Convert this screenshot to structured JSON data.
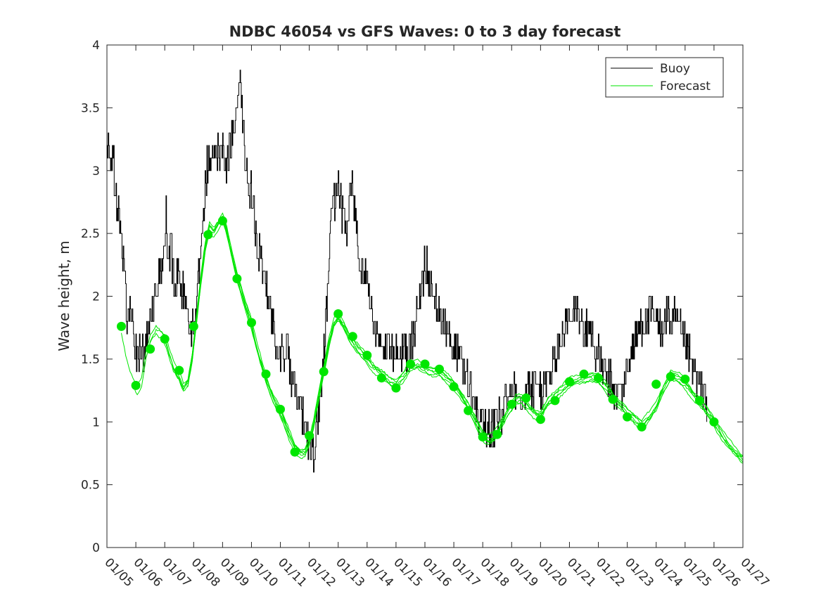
{
  "chart_data": {
    "type": "line",
    "title": "NDBC 46054 vs GFS Waves: 0 to 3 day forecast",
    "xlabel": "",
    "ylabel": "Wave height, m",
    "x_unit": "day index from 01/05",
    "xlim": [
      0,
      22
    ],
    "ylim": [
      0,
      4
    ],
    "x_ticks": [
      0,
      1,
      2,
      3,
      4,
      5,
      6,
      7,
      8,
      9,
      10,
      11,
      12,
      13,
      14,
      15,
      16,
      17,
      18,
      19,
      20,
      21,
      22
    ],
    "x_tick_labels": [
      "01/05",
      "01/06",
      "01/07",
      "01/08",
      "01/09",
      "01/10",
      "01/11",
      "01/12",
      "01/13",
      "01/14",
      "01/15",
      "01/16",
      "01/17",
      "01/18",
      "01/19",
      "01/20",
      "01/21",
      "01/22",
      "01/23",
      "01/24",
      "01/25",
      "01/26",
      "01/27"
    ],
    "y_ticks": [
      0,
      0.5,
      1,
      1.5,
      2,
      2.5,
      3,
      3.5,
      4
    ],
    "y_tick_labels": [
      "0",
      "0.5",
      "1",
      "1.5",
      "2",
      "2.5",
      "3",
      "3.5",
      "4"
    ],
    "grid": false,
    "legend_position": "top-right",
    "colors": {
      "buoy": "#000000",
      "forecast": "#00e600",
      "axes": "#262626"
    },
    "series": [
      {
        "name": "Buoy",
        "style": "stepped line",
        "points": [
          [
            0,
            3.0
          ],
          [
            0.05,
            3.3
          ],
          [
            0.12,
            2.9
          ],
          [
            0.2,
            3.2
          ],
          [
            0.28,
            2.8
          ],
          [
            0.4,
            2.7
          ],
          [
            0.5,
            2.4
          ],
          [
            0.6,
            2.2
          ],
          [
            0.7,
            1.8
          ],
          [
            0.8,
            1.9
          ],
          [
            0.9,
            1.7
          ],
          [
            1.0,
            1.6
          ],
          [
            1.1,
            1.5
          ],
          [
            1.2,
            1.6
          ],
          [
            1.3,
            1.5
          ],
          [
            1.4,
            1.7
          ],
          [
            1.55,
            1.9
          ],
          [
            1.7,
            2.1
          ],
          [
            1.85,
            2.2
          ],
          [
            2.0,
            2.3
          ],
          [
            2.05,
            2.8
          ],
          [
            2.1,
            2.2
          ],
          [
            2.2,
            2.4
          ],
          [
            2.3,
            2.1
          ],
          [
            2.45,
            2.2
          ],
          [
            2.6,
            2.0
          ],
          [
            2.7,
            2.1
          ],
          [
            2.8,
            1.8
          ],
          [
            2.9,
            1.7
          ],
          [
            3.0,
            1.8
          ],
          [
            3.1,
            2.0
          ],
          [
            3.2,
            2.3
          ],
          [
            3.3,
            2.6
          ],
          [
            3.4,
            2.9
          ],
          [
            3.5,
            3.1
          ],
          [
            3.6,
            3.0
          ],
          [
            3.75,
            3.2
          ],
          [
            3.9,
            3.1
          ],
          [
            4.0,
            3.2
          ],
          [
            4.1,
            3.0
          ],
          [
            4.25,
            3.2
          ],
          [
            4.4,
            3.3
          ],
          [
            4.5,
            3.6
          ],
          [
            4.6,
            3.7
          ],
          [
            4.7,
            3.4
          ],
          [
            4.8,
            3.1
          ],
          [
            4.9,
            2.9
          ],
          [
            5.0,
            2.8
          ],
          [
            5.1,
            2.6
          ],
          [
            5.2,
            2.4
          ],
          [
            5.3,
            2.3
          ],
          [
            5.45,
            2.1
          ],
          [
            5.6,
            1.9
          ],
          [
            5.75,
            1.8
          ],
          [
            5.9,
            1.6
          ],
          [
            6.1,
            1.5
          ],
          [
            6.25,
            1.6
          ],
          [
            6.4,
            1.3
          ],
          [
            6.55,
            1.2
          ],
          [
            6.7,
            1.1
          ],
          [
            6.85,
            0.9
          ],
          [
            7.0,
            0.8
          ],
          [
            7.1,
            0.75
          ],
          [
            7.2,
            0.85
          ],
          [
            7.3,
            1.0
          ],
          [
            7.4,
            1.3
          ],
          [
            7.5,
            1.6
          ],
          [
            7.6,
            1.9
          ],
          [
            7.7,
            2.4
          ],
          [
            7.8,
            2.8
          ],
          [
            7.9,
            2.7
          ],
          [
            8.0,
            2.9
          ],
          [
            8.1,
            2.7
          ],
          [
            8.2,
            2.6
          ],
          [
            8.3,
            2.4
          ],
          [
            8.4,
            2.8
          ],
          [
            8.5,
            2.9
          ],
          [
            8.6,
            2.6
          ],
          [
            8.75,
            2.3
          ],
          [
            8.9,
            2.2
          ],
          [
            9.05,
            2.0
          ],
          [
            9.2,
            1.8
          ],
          [
            9.35,
            1.7
          ],
          [
            9.5,
            1.6
          ],
          [
            9.7,
            1.6
          ],
          [
            9.9,
            1.5
          ],
          [
            10.1,
            1.6
          ],
          [
            10.3,
            1.5
          ],
          [
            10.45,
            1.6
          ],
          [
            10.6,
            1.7
          ],
          [
            10.75,
            1.9
          ],
          [
            10.9,
            2.1
          ],
          [
            11.0,
            2.3
          ],
          [
            11.1,
            2.2
          ],
          [
            11.2,
            2.1
          ],
          [
            11.3,
            2.0
          ],
          [
            11.45,
            1.9
          ],
          [
            11.6,
            1.8
          ],
          [
            11.75,
            1.7
          ],
          [
            11.9,
            1.6
          ],
          [
            12.05,
            1.6
          ],
          [
            12.2,
            1.5
          ],
          [
            12.35,
            1.4
          ],
          [
            12.5,
            1.3
          ],
          [
            12.65,
            1.2
          ],
          [
            12.8,
            1.1
          ],
          [
            12.95,
            1.0
          ],
          [
            13.1,
            0.95
          ],
          [
            13.25,
            0.9
          ],
          [
            13.4,
            0.95
          ],
          [
            13.55,
            1.0
          ],
          [
            13.7,
            1.1
          ],
          [
            13.85,
            1.2
          ],
          [
            14.0,
            1.25
          ],
          [
            14.15,
            1.3
          ],
          [
            14.3,
            1.2
          ],
          [
            14.45,
            1.3
          ],
          [
            14.6,
            1.3
          ],
          [
            14.75,
            1.25
          ],
          [
            14.9,
            1.3
          ],
          [
            15.05,
            1.25
          ],
          [
            15.2,
            1.3
          ],
          [
            15.35,
            1.4
          ],
          [
            15.5,
            1.5
          ],
          [
            15.65,
            1.6
          ],
          [
            15.8,
            1.7
          ],
          [
            15.95,
            1.8
          ],
          [
            16.1,
            1.8
          ],
          [
            16.25,
            1.9
          ],
          [
            16.4,
            1.8
          ],
          [
            16.55,
            1.7
          ],
          [
            16.7,
            1.8
          ],
          [
            16.85,
            1.6
          ],
          [
            17.0,
            1.5
          ],
          [
            17.15,
            1.4
          ],
          [
            17.3,
            1.35
          ],
          [
            17.45,
            1.3
          ],
          [
            17.6,
            1.2
          ],
          [
            17.75,
            1.25
          ],
          [
            17.9,
            1.3
          ],
          [
            18.05,
            1.5
          ],
          [
            18.2,
            1.6
          ],
          [
            18.35,
            1.7
          ],
          [
            18.5,
            1.8
          ],
          [
            18.65,
            1.8
          ],
          [
            18.8,
            1.85
          ],
          [
            18.95,
            1.8
          ],
          [
            19.1,
            1.75
          ],
          [
            19.25,
            1.8
          ],
          [
            19.4,
            1.85
          ],
          [
            19.55,
            1.8
          ],
          [
            19.7,
            1.8
          ],
          [
            19.85,
            1.7
          ],
          [
            20.0,
            1.6
          ],
          [
            20.15,
            1.5
          ],
          [
            20.3,
            1.4
          ],
          [
            20.45,
            1.3
          ],
          [
            20.6,
            1.2
          ],
          [
            20.7,
            1.3
          ],
          [
            20.75,
            1.1
          ]
        ]
      },
      {
        "name": "Forecast",
        "style": "ensemble lines with daily markers",
        "members": 6,
        "points": [
          [
            0.5,
            1.75
          ],
          [
            0.65,
            1.55
          ],
          [
            0.8,
            1.4
          ],
          [
            0.95,
            1.3
          ],
          [
            1.05,
            1.25
          ],
          [
            1.2,
            1.3
          ],
          [
            1.35,
            1.5
          ],
          [
            1.5,
            1.62
          ],
          [
            1.7,
            1.7
          ],
          [
            1.85,
            1.68
          ],
          [
            2.0,
            1.65
          ],
          [
            2.15,
            1.55
          ],
          [
            2.3,
            1.45
          ],
          [
            2.5,
            1.38
          ],
          [
            2.65,
            1.3
          ],
          [
            2.8,
            1.35
          ],
          [
            2.95,
            1.55
          ],
          [
            3.1,
            1.85
          ],
          [
            3.25,
            2.15
          ],
          [
            3.4,
            2.4
          ],
          [
            3.55,
            2.55
          ],
          [
            3.7,
            2.5
          ],
          [
            3.85,
            2.55
          ],
          [
            4.0,
            2.6
          ],
          [
            4.15,
            2.48
          ],
          [
            4.3,
            2.32
          ],
          [
            4.5,
            2.13
          ],
          [
            4.75,
            1.95
          ],
          [
            5.0,
            1.78
          ],
          [
            5.2,
            1.6
          ],
          [
            5.5,
            1.38
          ],
          [
            5.75,
            1.22
          ],
          [
            6.0,
            1.1
          ],
          [
            6.15,
            1.0
          ],
          [
            6.3,
            0.9
          ],
          [
            6.5,
            0.78
          ],
          [
            6.7,
            0.72
          ],
          [
            6.85,
            0.72
          ],
          [
            7.0,
            0.8
          ],
          [
            7.15,
            0.95
          ],
          [
            7.3,
            1.15
          ],
          [
            7.5,
            1.4
          ],
          [
            7.7,
            1.65
          ],
          [
            7.85,
            1.8
          ],
          [
            8.0,
            1.86
          ],
          [
            8.2,
            1.8
          ],
          [
            8.45,
            1.68
          ],
          [
            8.7,
            1.6
          ],
          [
            8.95,
            1.52
          ],
          [
            9.2,
            1.42
          ],
          [
            9.5,
            1.35
          ],
          [
            9.75,
            1.29
          ],
          [
            10.0,
            1.27
          ],
          [
            10.25,
            1.35
          ],
          [
            10.5,
            1.45
          ],
          [
            10.75,
            1.48
          ],
          [
            11.0,
            1.46
          ],
          [
            11.25,
            1.43
          ],
          [
            11.5,
            1.42
          ],
          [
            11.75,
            1.35
          ],
          [
            12.0,
            1.28
          ],
          [
            12.25,
            1.18
          ],
          [
            12.5,
            1.08
          ],
          [
            12.75,
            0.98
          ],
          [
            13.0,
            0.88
          ],
          [
            13.2,
            0.86
          ],
          [
            13.4,
            0.9
          ],
          [
            13.65,
            1.02
          ],
          [
            13.9,
            1.13
          ],
          [
            14.15,
            1.2
          ],
          [
            14.35,
            1.19
          ],
          [
            14.6,
            1.1
          ],
          [
            14.85,
            1.03
          ],
          [
            15.0,
            1.02
          ],
          [
            15.25,
            1.12
          ],
          [
            15.5,
            1.18
          ],
          [
            15.75,
            1.25
          ],
          [
            16.0,
            1.32
          ],
          [
            16.25,
            1.36
          ],
          [
            16.5,
            1.38
          ],
          [
            16.75,
            1.39
          ],
          [
            17.0,
            1.36
          ],
          [
            17.25,
            1.28
          ],
          [
            17.5,
            1.18
          ],
          [
            17.75,
            1.1
          ],
          [
            18.0,
            1.04
          ],
          [
            18.25,
            1.0
          ],
          [
            18.5,
            0.97
          ],
          [
            18.75,
            1.05
          ],
          [
            19.0,
            1.15
          ],
          [
            19.25,
            1.3
          ],
          [
            19.5,
            1.4
          ],
          [
            19.75,
            1.37
          ],
          [
            20.0,
            1.3
          ],
          [
            20.25,
            1.2
          ],
          [
            20.5,
            1.12
          ],
          [
            20.75,
            1.05
          ],
          [
            21.0,
            0.98
          ],
          [
            21.25,
            0.9
          ],
          [
            21.5,
            0.84
          ],
          [
            21.75,
            0.79
          ],
          [
            22.0,
            0.74
          ]
        ],
        "markers": [
          [
            0.5,
            1.76
          ],
          [
            1.0,
            1.29
          ],
          [
            1.5,
            1.58
          ],
          [
            2.0,
            1.66
          ],
          [
            2.5,
            1.41
          ],
          [
            3.0,
            1.76
          ],
          [
            3.5,
            2.49
          ],
          [
            4.0,
            2.6
          ],
          [
            4.5,
            2.14
          ],
          [
            5.0,
            1.79
          ],
          [
            5.5,
            1.38
          ],
          [
            6.0,
            1.1
          ],
          [
            6.5,
            0.76
          ],
          [
            7.0,
            0.89
          ],
          [
            7.5,
            1.4
          ],
          [
            8.0,
            1.86
          ],
          [
            8.5,
            1.68
          ],
          [
            9.0,
            1.53
          ],
          [
            9.5,
            1.35
          ],
          [
            10.0,
            1.27
          ],
          [
            10.5,
            1.46
          ],
          [
            11.0,
            1.46
          ],
          [
            11.5,
            1.42
          ],
          [
            12.0,
            1.28
          ],
          [
            12.5,
            1.09
          ],
          [
            13.0,
            0.88
          ],
          [
            13.5,
            0.9
          ],
          [
            14.0,
            1.14
          ],
          [
            14.5,
            1.19
          ],
          [
            15.0,
            1.02
          ],
          [
            15.5,
            1.17
          ],
          [
            16.0,
            1.32
          ],
          [
            16.5,
            1.38
          ],
          [
            17.0,
            1.35
          ],
          [
            17.5,
            1.18
          ],
          [
            18.0,
            1.04
          ],
          [
            18.5,
            0.96
          ],
          [
            19.0,
            1.3
          ],
          [
            19.5,
            1.36
          ],
          [
            20.0,
            1.34
          ],
          [
            20.5,
            1.17
          ],
          [
            21.0,
            1.0
          ]
        ]
      }
    ]
  }
}
